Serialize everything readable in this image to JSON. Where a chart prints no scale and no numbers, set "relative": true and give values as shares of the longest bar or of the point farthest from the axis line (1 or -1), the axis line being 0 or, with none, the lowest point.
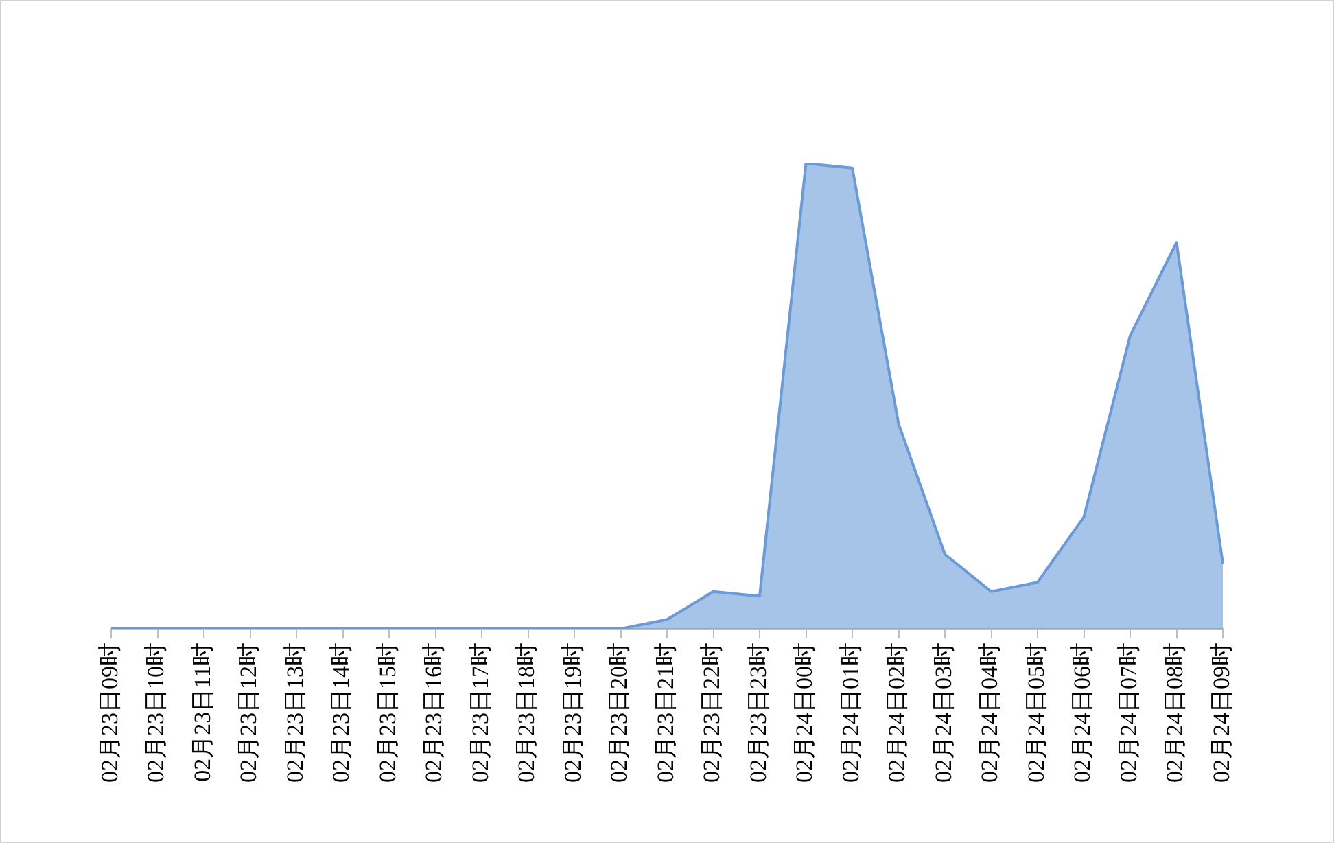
{
  "chart_data": {
    "type": "area",
    "relative": true,
    "categories": [
      "02月23日09时",
      "02月23日10时",
      "02月23日11时",
      "02月23日12时",
      "02月23日13时",
      "02月23日14时",
      "02月23日15时",
      "02月23日16时",
      "02月23日17时",
      "02月23日18时",
      "02月23日19时",
      "02月23日20时",
      "02月23日21时",
      "02月23日22时",
      "02月23日23时",
      "02月24日00时",
      "02月24日01时",
      "02月24日02时",
      "02月24日03时",
      "02月24日04时",
      "02月24日05时",
      "02月24日06时",
      "02月24日07时",
      "02月24日08时",
      "02月24日09时"
    ],
    "series": [
      {
        "color": "#6a9bd8",
        "values": [
          0,
          0,
          0,
          0,
          0,
          0,
          0,
          0,
          0,
          0,
          0,
          0,
          0.02,
          0.08,
          0.07,
          1,
          0.99,
          0.44,
          0.16,
          0.08,
          0.1,
          0.24,
          0.63,
          0.83,
          0.14
        ]
      }
    ],
    "legend": false,
    "grid": false
  }
}
